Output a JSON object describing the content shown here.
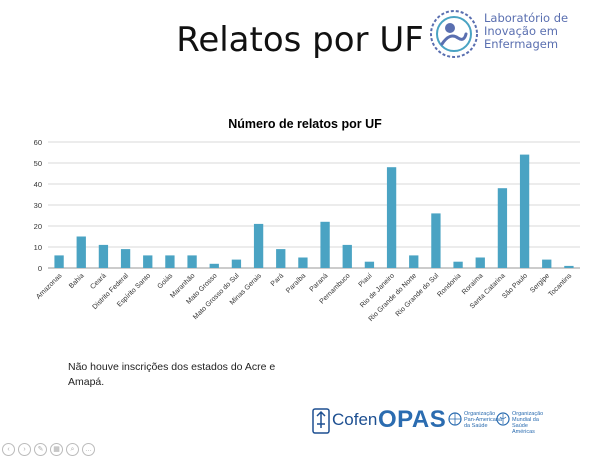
{
  "slide": {
    "title": "Relatos por UF"
  },
  "lab_logo": {
    "line1": "Laboratório de",
    "line2": "Inovação em",
    "line3": "Enfermagem",
    "color": "#5a6fb0"
  },
  "note": {
    "text": "Não houve inscrições dos estados do Acre e Amapá."
  },
  "footer": {
    "cofen": "Cofen",
    "opas": "OPAS",
    "ops_line1": "Organização",
    "ops_line2": "Pan-Americana",
    "ops_line3": "da Saúde",
    "oms_line1": "Organização",
    "oms_line2": "Mundial da Saúde",
    "oms_line3": "Américas"
  },
  "toolbar": {
    "icons": [
      "back-icon",
      "forward-icon",
      "pen-icon",
      "slides-icon",
      "zoom-icon",
      "more-icon"
    ]
  },
  "chart_data": {
    "type": "bar",
    "title": "Número de relatos por UF",
    "xlabel": "",
    "ylabel": "",
    "ylim": [
      0,
      60
    ],
    "yticks": [
      0,
      10,
      20,
      30,
      40,
      50,
      60
    ],
    "grid": true,
    "bar_color": "#4aa3c3",
    "categories": [
      "Amazonas",
      "Bahia",
      "Ceará",
      "Distrito Federal",
      "Espírito Santo",
      "Goiás",
      "Maranhão",
      "Mato Grosso",
      "Mato Grosso do Sul",
      "Minas Gerais",
      "Pará",
      "Paraíba",
      "Paraná",
      "Pernambuco",
      "Piauí",
      "Rio de Janeiro",
      "Rio Grande do Norte",
      "Rio Grande do Sul",
      "Rondonia",
      "Roraima",
      "Santa Catarina",
      "São Paulo",
      "Sergipe",
      "Tocantins"
    ],
    "values": [
      6,
      15,
      11,
      9,
      6,
      6,
      6,
      2,
      4,
      21,
      9,
      5,
      22,
      11,
      3,
      48,
      6,
      26,
      3,
      5,
      38,
      54,
      4,
      1
    ]
  }
}
